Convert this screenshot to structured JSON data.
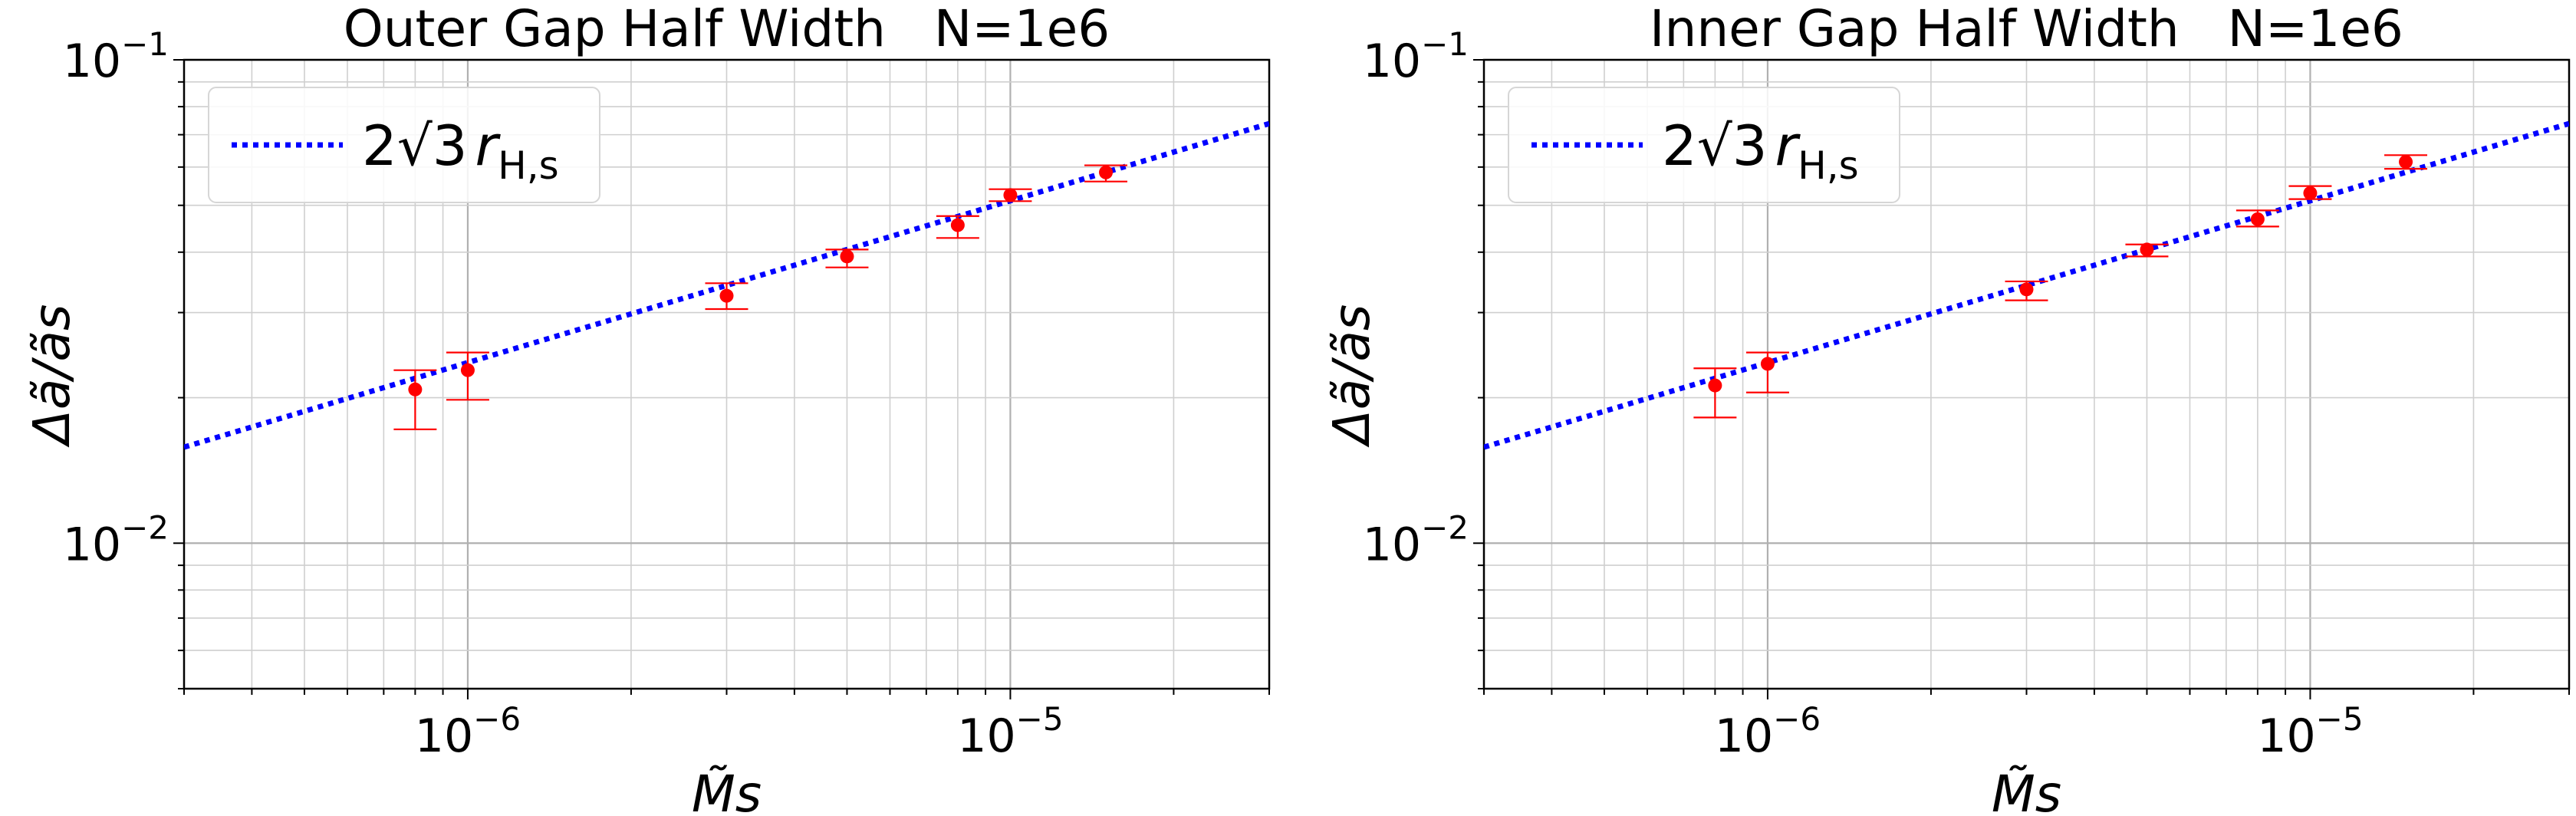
{
  "chart_data": [
    {
      "type": "scatter",
      "title": "Outer Gap Half Width   N=1e6",
      "xlabel": "M̃s",
      "ylabel": "Δã/ãs",
      "xscale": "log",
      "yscale": "log",
      "xlim": [
        3e-07,
        3e-05
      ],
      "ylim": [
        0.005,
        0.1
      ],
      "grid": true,
      "legend_position": "top-left",
      "x_ticks": [
        {
          "value": 1e-06,
          "base": "10",
          "exp": "−6"
        },
        {
          "value": 1e-05,
          "base": "10",
          "exp": "−5"
        }
      ],
      "y_ticks": [
        {
          "value": 0.01,
          "base": "10",
          "exp": "−2"
        },
        {
          "value": 0.1,
          "base": "10",
          "exp": "−1"
        }
      ],
      "series": [
        {
          "kind": "line",
          "name": "2√3 rH,s",
          "color": "#0000ff",
          "style": "dotted",
          "x": [
            3e-07,
            3e-05
          ],
          "y": [
            0.0158,
            0.0738
          ]
        },
        {
          "kind": "errorbar",
          "name": "",
          "color": "#ff0000",
          "x": [
            8e-07,
            1e-06,
            3e-06,
            5e-06,
            8e-06,
            1e-05,
            1.5e-05
          ],
          "y": [
            0.0208,
            0.0228,
            0.0325,
            0.0392,
            0.0455,
            0.0525,
            0.0585
          ],
          "y_low": [
            0.0172,
            0.0198,
            0.0305,
            0.0372,
            0.0428,
            0.051,
            0.056
          ],
          "y_high": [
            0.0228,
            0.0248,
            0.0345,
            0.0405,
            0.0475,
            0.054,
            0.0605
          ]
        }
      ]
    },
    {
      "type": "scatter",
      "title": "Inner Gap Half Width   N=1e6",
      "xlabel": "M̃s",
      "ylabel": "Δã/ãs",
      "xscale": "log",
      "yscale": "log",
      "xlim": [
        3e-07,
        3e-05
      ],
      "ylim": [
        0.005,
        0.1
      ],
      "grid": true,
      "legend_position": "top-left",
      "x_ticks": [
        {
          "value": 1e-06,
          "base": "10",
          "exp": "−6"
        },
        {
          "value": 1e-05,
          "base": "10",
          "exp": "−5"
        }
      ],
      "y_ticks": [
        {
          "value": 0.01,
          "base": "10",
          "exp": "−2"
        },
        {
          "value": 0.1,
          "base": "10",
          "exp": "−1"
        }
      ],
      "series": [
        {
          "kind": "line",
          "name": "2√3 rH,s",
          "color": "#0000ff",
          "style": "dotted",
          "x": [
            3e-07,
            3e-05
          ],
          "y": [
            0.0158,
            0.0738
          ]
        },
        {
          "kind": "errorbar",
          "name": "",
          "color": "#ff0000",
          "x": [
            8e-07,
            1e-06,
            3e-06,
            5e-06,
            8e-06,
            1e-05,
            1.5e-05
          ],
          "y": [
            0.0212,
            0.0235,
            0.0335,
            0.0405,
            0.0468,
            0.053,
            0.0615
          ],
          "y_low": [
            0.0182,
            0.0205,
            0.0318,
            0.0392,
            0.0452,
            0.0515,
            0.0595
          ],
          "y_high": [
            0.023,
            0.0248,
            0.0348,
            0.0415,
            0.0488,
            0.0548,
            0.0635
          ]
        }
      ]
    }
  ]
}
